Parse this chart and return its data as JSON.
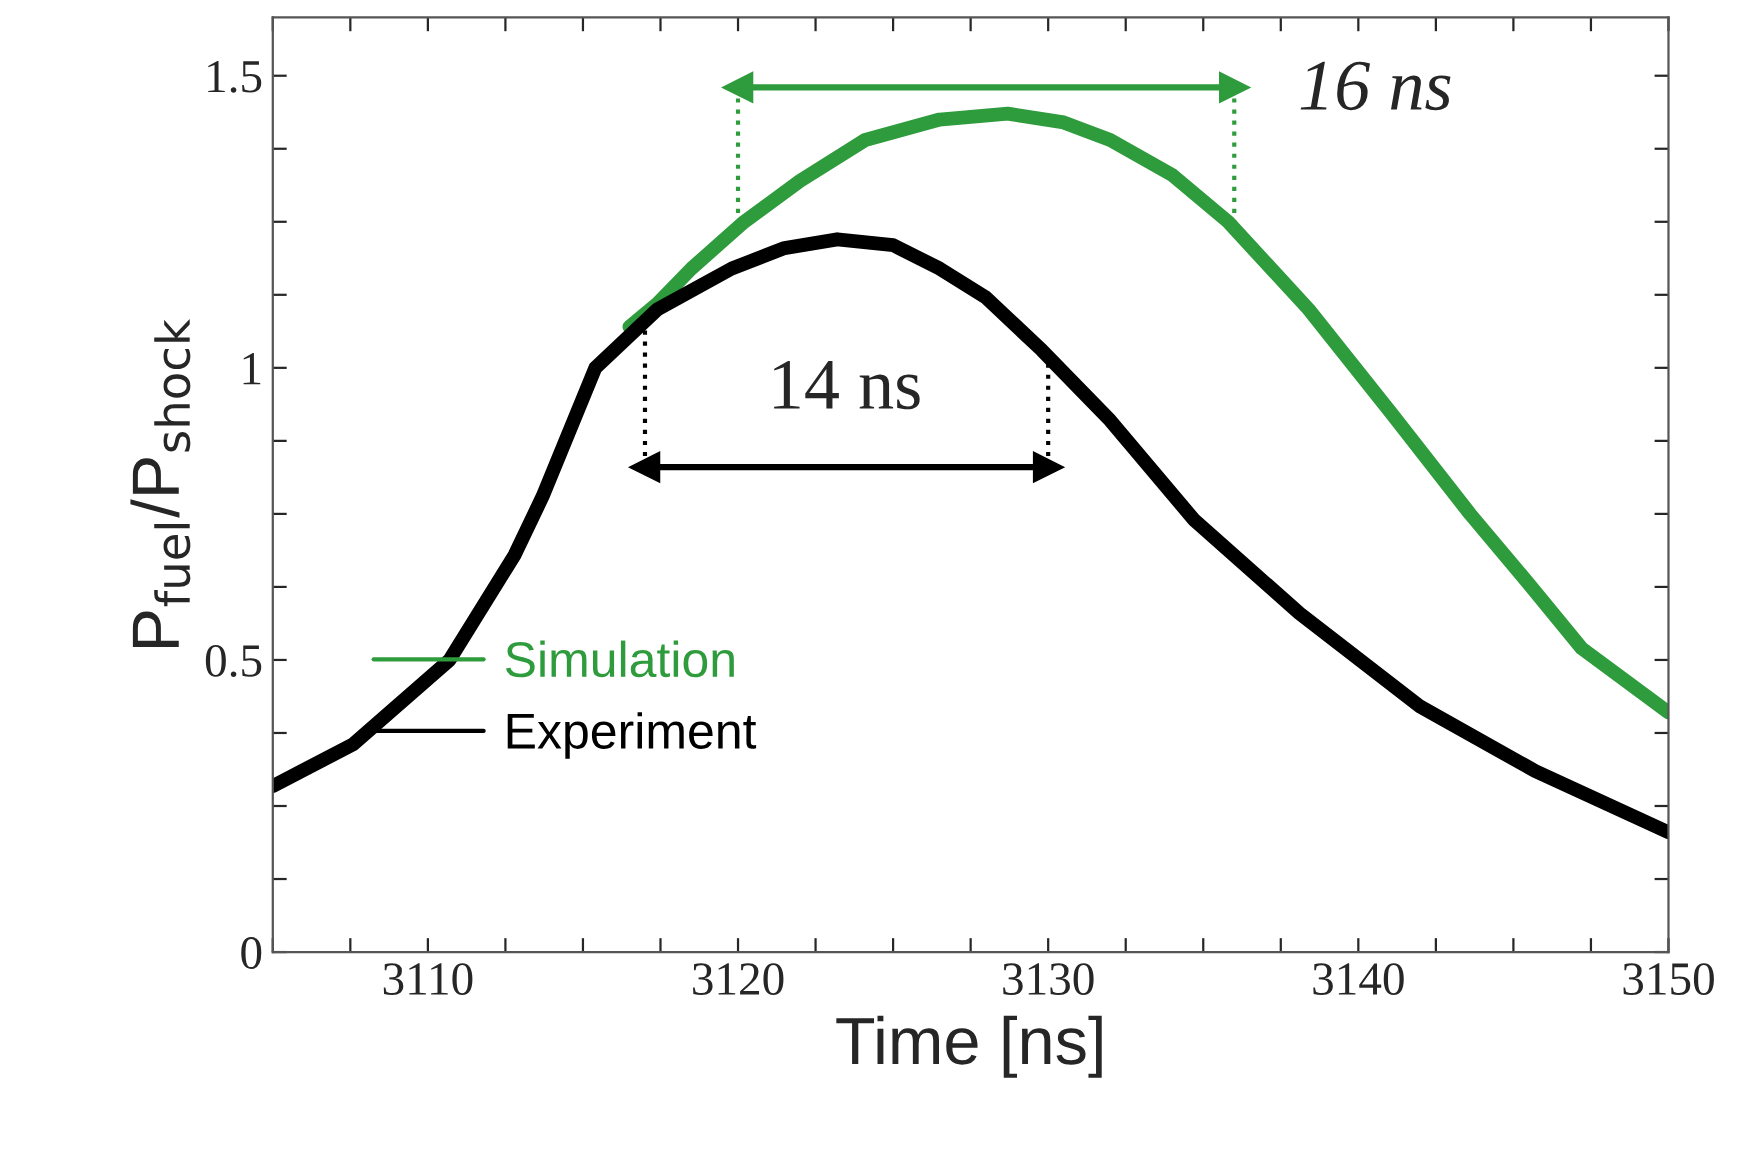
{
  "chart_data": {
    "type": "line",
    "xlabel": "Time [ns]",
    "ylabel": "P$_{fuel}$/P$_{shock}$",
    "xlim": [
      3105,
      3150
    ],
    "ylim": [
      0,
      1.6
    ],
    "xticks": [
      {
        "value": 3105,
        "label": null
      },
      {
        "value": 3107.5,
        "label": null
      },
      3110,
      {
        "value": 3112.5,
        "label": null
      },
      {
        "value": 3115,
        "label": null
      },
      {
        "value": 3117.5,
        "label": null
      },
      3120,
      {
        "value": 3122.5,
        "label": null
      },
      {
        "value": 3125,
        "label": null
      },
      {
        "value": 3127.5,
        "label": null
      },
      3130,
      {
        "value": 3132.5,
        "label": null
      },
      {
        "value": 3135,
        "label": null
      },
      {
        "value": 3137.5,
        "label": null
      },
      3140,
      {
        "value": 3142.5,
        "label": null
      },
      {
        "value": 3145,
        "label": null
      },
      {
        "value": 3147.5,
        "label": null
      },
      3150
    ],
    "yticks": [
      0,
      {
        "value": 0.125,
        "label": null
      },
      {
        "value": 0.25,
        "label": null
      },
      {
        "value": 0.375,
        "label": null
      },
      0.5,
      {
        "value": 0.625,
        "label": null
      },
      {
        "value": 0.75,
        "label": null
      },
      {
        "value": 0.875,
        "label": null
      },
      1,
      {
        "value": 1.125,
        "label": null
      },
      {
        "value": 1.25,
        "label": null
      },
      {
        "value": 1.375,
        "label": null
      },
      1.5
    ],
    "grid": false,
    "legend": "left",
    "series": [
      {
        "name": "Simulation",
        "color": "#2e9b3c",
        "x": [
          3116.5,
          3117.4,
          3118.5,
          3120.2,
          3122,
          3124.1,
          3126.5,
          3128.7,
          3130.5,
          3132.0,
          3134,
          3135.8,
          3138.4,
          3141.1,
          3143.6,
          3145.5,
          3147.2,
          3150
        ],
        "values": [
          1.07,
          1.11,
          1.17,
          1.25,
          1.32,
          1.39,
          1.425,
          1.435,
          1.42,
          1.39,
          1.33,
          1.25,
          1.1,
          0.92,
          0.75,
          0.63,
          0.52,
          0.41
        ]
      },
      {
        "name": "Experiment",
        "color": "#000000",
        "x": [
          3105,
          3107.6,
          3110.7,
          3112.8,
          3113.7,
          3115.4,
          3117.4,
          3119.8,
          3121.5,
          3123.2,
          3125,
          3126.5,
          3128,
          3129.8,
          3132,
          3134.7,
          3138.1,
          3142.0,
          3145.7,
          3150
        ],
        "values": [
          0.284,
          0.356,
          0.5,
          0.68,
          0.78,
          1.0,
          1.1,
          1.17,
          1.205,
          1.22,
          1.21,
          1.17,
          1.12,
          1.03,
          0.91,
          0.74,
          0.58,
          0.42,
          0.31,
          0.205
        ]
      },
      {
        "color": "#2e9b3c",
        "x": [
          3120,
          3136
        ],
        "values": [
          1.48,
          1.48
        ],
        "marker": "triangle",
        "line_style": "solid"
      },
      {
        "color": "#2e9b3c",
        "x": [
          3120,
          3120
        ],
        "values": [
          1.48,
          1.25
        ],
        "marker": "none",
        "line_style": "dotted"
      },
      {
        "color": "#2e9b3c",
        "x": [
          3136,
          3136
        ],
        "values": [
          1.48,
          1.25
        ],
        "marker": "none",
        "line_style": "dotted"
      },
      {
        "color": "#000000",
        "x": [
          3117,
          3130
        ],
        "values": [
          0.83,
          0.83
        ],
        "marker": "triangle",
        "line_style": "solid"
      },
      {
        "color": "#000000",
        "x": [
          3117,
          3117
        ],
        "values": [
          0.83,
          1.08
        ],
        "marker": "none",
        "line_style": "dotted"
      },
      {
        "color": "#000000",
        "x": [
          3130,
          3130
        ],
        "values": [
          0.83,
          1.03
        ],
        "marker": "none",
        "line_style": "dotted"
      }
    ],
    "annotations": [
      "16 ns",
      "14 ns"
    ]
  }
}
